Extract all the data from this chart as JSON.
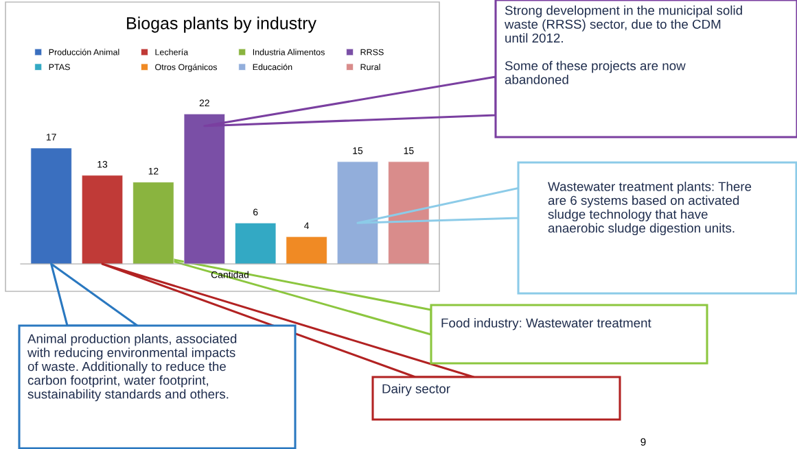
{
  "chart_data": {
    "type": "bar",
    "title": "Biogas plants by industry",
    "xlabel": "Cantidad",
    "categories": [
      null,
      null,
      null,
      null,
      null,
      null,
      null,
      null
    ],
    "series": [
      {
        "name": "Producción Animal",
        "color": "#3a6fbf",
        "values": [
          17,
          null,
          null,
          null,
          null,
          null,
          null,
          null
        ]
      },
      {
        "name": "Lechería",
        "color": "#c03a37",
        "values": [
          null,
          13,
          null,
          null,
          null,
          null,
          null,
          null
        ]
      },
      {
        "name": "Industria Alimentos",
        "color": "#8ab43f",
        "values": [
          null,
          null,
          12,
          null,
          null,
          null,
          null,
          null
        ]
      },
      {
        "name": "RRSS",
        "color": "#7a4fa6",
        "values": [
          null,
          null,
          null,
          22,
          null,
          null,
          null,
          null
        ]
      },
      {
        "name": "PTAS",
        "color": "#33a9c4",
        "values": [
          null,
          null,
          null,
          null,
          6,
          null,
          null,
          null
        ]
      },
      {
        "name": "Otros Orgánicos",
        "color": "#f08a24",
        "values": [
          null,
          null,
          null,
          null,
          null,
          4,
          null,
          null
        ]
      },
      {
        "name": "Educación",
        "color": "#92aedb",
        "values": [
          null,
          null,
          null,
          null,
          null,
          null,
          15,
          null
        ]
      },
      {
        "name": "Rural",
        "color": "#d98c8b",
        "values": [
          null,
          null,
          null,
          null,
          null,
          null,
          null,
          15
        ]
      }
    ],
    "data_labels": true,
    "legend": "top",
    "stacked": true,
    "annotations": [
      "Strong development in the municipal solid\nwaste (RRSS) sector, due to the CDM\nuntil 2012.\n\nSome of these projects are now\nabandoned",
      "Wastewater treatment plants: There\nare 6 systems based on activated\nsludge technology that have\nanaerobic sludge digestion units.",
      "Food industry: Wastewater treatment",
      "Dairy sector",
      "Animal production plants, associated\nwith reducing environmental impacts\nof waste. Additionally to reduce the\ncarbon footprint, water footprint,\nsustainability standards and others.",
      "9"
    ]
  }
}
